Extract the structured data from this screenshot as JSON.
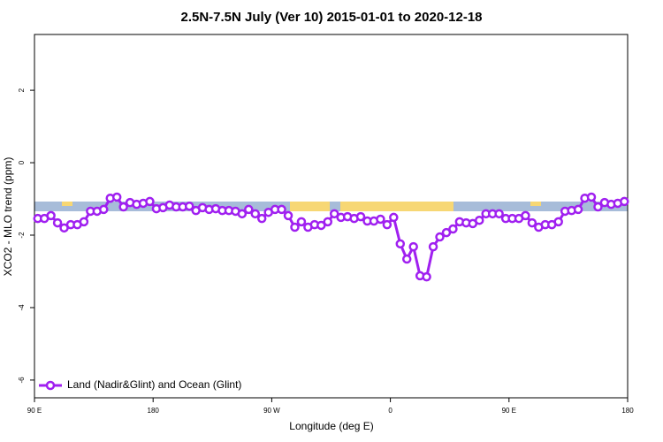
{
  "chart_data": {
    "type": "line",
    "title": "2.5N-7.5N July (Ver 10)   2015-01-01 to 2020-12-18",
    "x_label": "Longitude (deg E)",
    "y_label": "XCO2 - MLO trend (ppm)",
    "xlim": [
      90,
      540
    ],
    "ylim": [
      -6.49,
      3.54
    ],
    "xticks": [
      {
        "value": 90,
        "label": "90 E"
      },
      180,
      {
        "value": 270,
        "label": "90 W"
      },
      {
        "value": 360,
        "label": "0"
      },
      {
        "value": 450,
        "label": "90 E"
      },
      {
        "value": 540,
        "label": "180"
      }
    ],
    "yticks": [
      2,
      0,
      -2,
      -4,
      -6
    ],
    "legend": "lower left",
    "series": [
      {
        "name": "Land (Nadir&Glint) and Ocean (Glint)",
        "color": "#a020f0",
        "x": [
          92.5,
          97.5,
          102.5,
          107.5,
          112.5,
          117.5,
          122.5,
          127.5,
          132.5,
          137.5,
          142.5,
          147.5,
          152.5,
          157.5,
          162.5,
          167.5,
          172.5,
          177.5,
          182.5,
          187.5,
          192.5,
          197.5,
          202.5,
          207.5,
          212.5,
          217.5,
          222.5,
          227.5,
          232.5,
          237.5,
          242.5,
          247.5,
          252.5,
          257.5,
          262.5,
          267.5,
          272.5,
          277.5,
          282.5,
          287.5,
          292.5,
          297.5,
          302.5,
          307.5,
          312.5,
          317.5,
          322.5,
          327.5,
          332.5,
          337.5,
          342.5,
          347.5,
          352.5,
          357.5,
          362.5,
          367.5,
          372.5,
          377.5,
          382.5,
          387.5,
          392.5,
          397.5,
          402.5,
          407.5,
          412.5,
          417.5,
          422.5,
          427.5,
          432.5,
          437.5,
          442.5,
          447.5,
          452.5,
          457.5,
          462.5,
          467.5,
          472.5,
          477.5,
          482.5,
          487.5,
          492.5,
          497.5,
          502.5,
          507.5,
          512.5,
          517.5,
          522.5,
          527.5,
          532.5,
          537.5
        ],
        "values": [
          -1.54,
          -1.54,
          -1.46,
          -1.66,
          -1.8,
          -1.71,
          -1.71,
          -1.63,
          -1.34,
          -1.34,
          -1.29,
          -0.98,
          -0.95,
          -1.22,
          -1.1,
          -1.15,
          -1.12,
          -1.07,
          -1.27,
          -1.24,
          -1.17,
          -1.22,
          -1.22,
          -1.2,
          -1.32,
          -1.24,
          -1.29,
          -1.27,
          -1.32,
          -1.32,
          -1.34,
          -1.41,
          -1.29,
          -1.41,
          -1.54,
          -1.37,
          -1.29,
          -1.29,
          -1.46,
          -1.78,
          -1.63,
          -1.78,
          -1.71,
          -1.73,
          -1.63,
          -1.41,
          -1.51,
          -1.49,
          -1.54,
          -1.49,
          -1.61,
          -1.61,
          -1.56,
          -1.71,
          -1.51,
          -2.24,
          -2.66,
          -2.32,
          -3.12,
          -3.15,
          -2.32,
          -2.05,
          -1.93,
          -1.83,
          -1.63,
          -1.66,
          -1.68,
          -1.59,
          -1.41,
          -1.41,
          -1.41,
          -1.54,
          -1.54,
          -1.54,
          -1.46,
          -1.66,
          -1.78,
          -1.71,
          -1.71,
          -1.63,
          -1.34,
          -1.32,
          -1.29,
          -0.98,
          -0.95,
          -1.22,
          -1.1,
          -1.15,
          -1.12,
          -1.07
        ]
      }
    ]
  }
}
